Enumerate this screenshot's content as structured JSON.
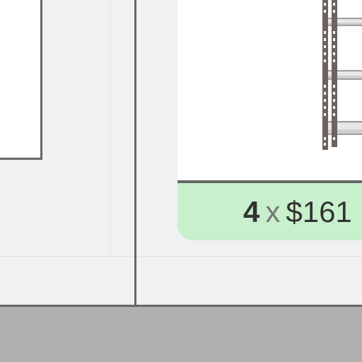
{
  "order_item": {
    "quantity": "4",
    "multiply_sign": "x",
    "unit_price": "$161"
  },
  "product": {
    "image_icon": "steel-shelving-unit"
  },
  "colors": {
    "price_bar": "#c8f0cc",
    "border": "#666666",
    "background": "#f1f1f1",
    "bottom_bar": "#b0b0b0"
  }
}
